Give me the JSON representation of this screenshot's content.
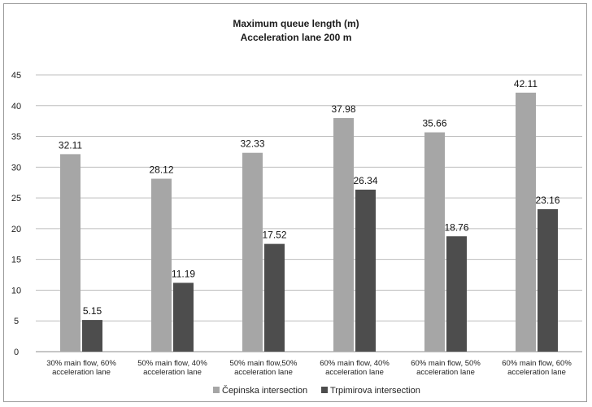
{
  "chart_data": {
    "type": "bar",
    "title": "Maximum queue length (m)",
    "subtitle": "Acceleration lane 200 m",
    "categories": [
      [
        "30% main flow, 60%",
        "acceleration lane"
      ],
      [
        "50% main flow, 40%",
        "acceleration lane"
      ],
      [
        "50% main flow,50%",
        "acceleration lane"
      ],
      [
        "60% main flow, 40%",
        "acceleration lane"
      ],
      [
        "60% main flow, 50%",
        "acceleration lane"
      ],
      [
        "60% main flow, 60%",
        "acceleration lane"
      ]
    ],
    "series": [
      {
        "name": "Čepinska intersection",
        "values": [
          32.11,
          28.12,
          32.33,
          37.98,
          35.66,
          42.11
        ],
        "value_labels": [
          "32.11",
          "28.12",
          "32.33",
          "37.98",
          "35.66",
          "42.11"
        ],
        "color": "#a6a6a6"
      },
      {
        "name": "Trpimirova intersection",
        "values": [
          5.15,
          11.19,
          17.52,
          26.34,
          18.76,
          23.16
        ],
        "value_labels": [
          "5.15",
          "11.19",
          "17.52",
          "26.34",
          "18.76",
          "23.16"
        ],
        "color": "#4d4d4d"
      }
    ],
    "ylim": [
      0,
      45
    ],
    "yticks": [
      0,
      5,
      10,
      15,
      20,
      25,
      30,
      35,
      40,
      45
    ],
    "grid": true,
    "legend_position": "bottom"
  }
}
